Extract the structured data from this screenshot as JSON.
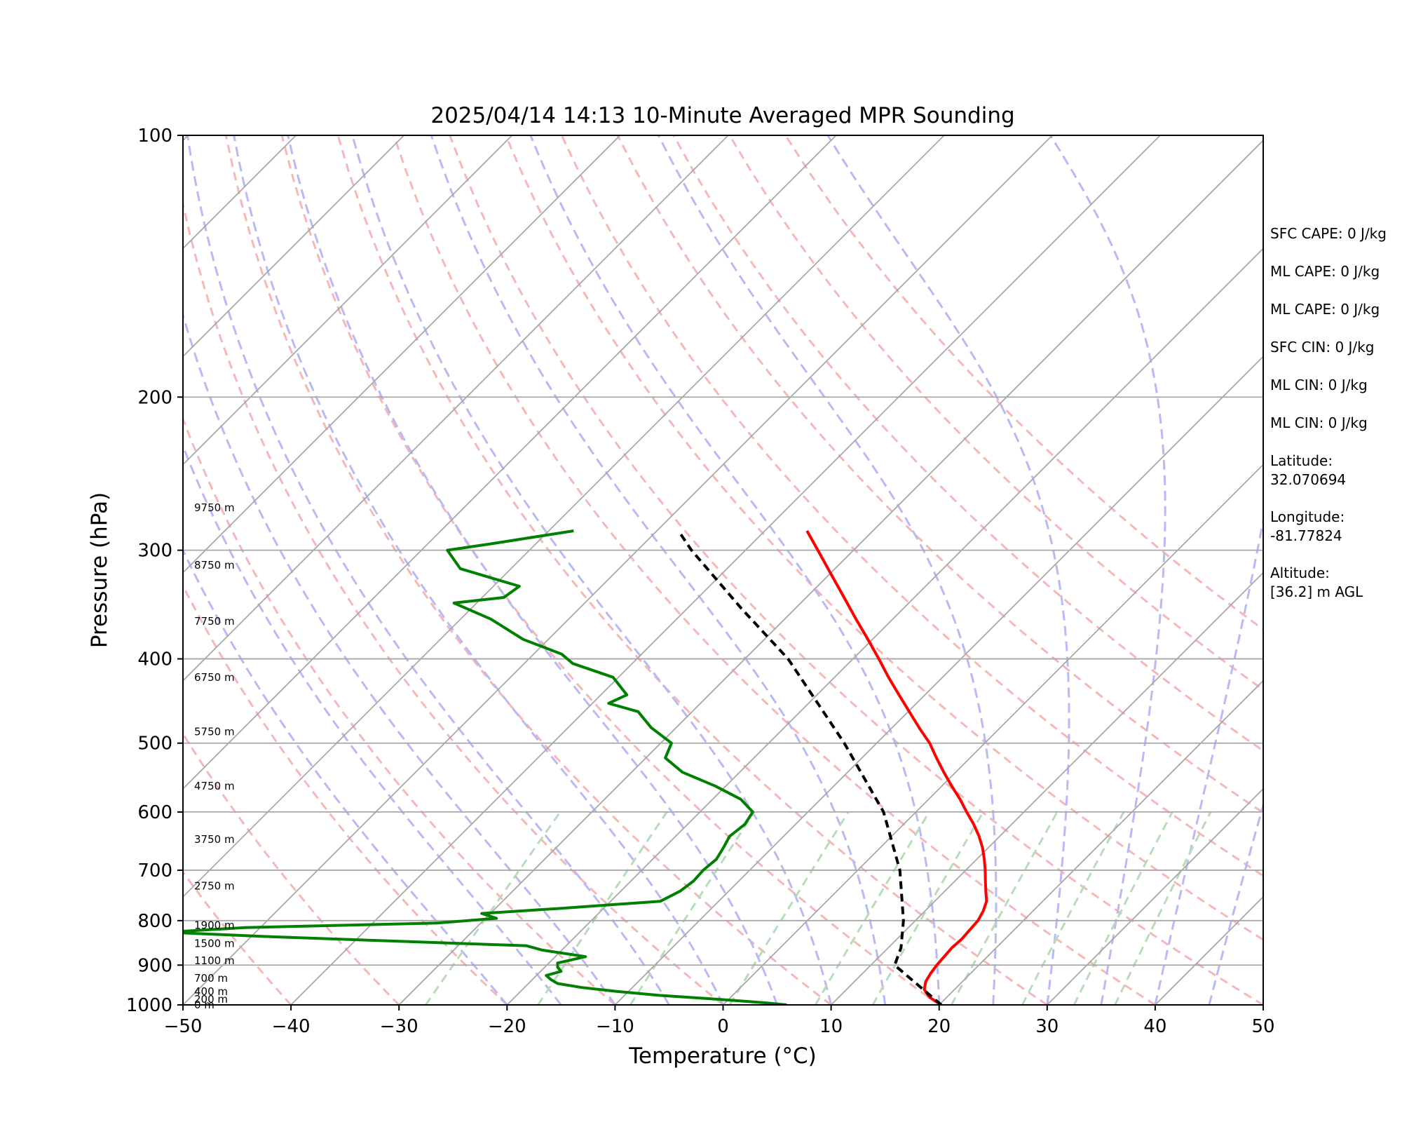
{
  "chart_data": {
    "type": "line",
    "title": "2025/04/14 14:13 10-Minute Averaged MPR Sounding",
    "xlabel": "Temperature (°C)",
    "ylabel": "Pressure (hPa)",
    "xlim": [
      -50,
      50
    ],
    "ylim": [
      1000,
      100
    ],
    "yscale": "log",
    "skew": "skew-T log-P",
    "xticks": [
      -50,
      -40,
      -30,
      -20,
      -10,
      0,
      10,
      20,
      30,
      40,
      50
    ],
    "yticks": [
      1000,
      900,
      800,
      700,
      600,
      500,
      400,
      300,
      200,
      100
    ],
    "grid": true,
    "series": [
      {
        "role": "temperature",
        "color": "#ff0000",
        "points": [
          [
            1000,
            20.2
          ],
          [
            980,
            18.4
          ],
          [
            960,
            17.2
          ],
          [
            940,
            16.6
          ],
          [
            920,
            16.3
          ],
          [
            900,
            16.1
          ],
          [
            880,
            16.0
          ],
          [
            860,
            15.9
          ],
          [
            840,
            16.0
          ],
          [
            820,
            15.9
          ],
          [
            800,
            15.8
          ],
          [
            780,
            15.4
          ],
          [
            760,
            14.8
          ],
          [
            740,
            13.8
          ],
          [
            720,
            12.8
          ],
          [
            700,
            11.8
          ],
          [
            680,
            10.7
          ],
          [
            660,
            9.5
          ],
          [
            640,
            8.1
          ],
          [
            620,
            6.5
          ],
          [
            600,
            4.7
          ],
          [
            580,
            2.9
          ],
          [
            560,
            0.9
          ],
          [
            540,
            -1.1
          ],
          [
            520,
            -3.1
          ],
          [
            500,
            -5.1
          ],
          [
            480,
            -7.5
          ],
          [
            460,
            -9.9
          ],
          [
            440,
            -12.4
          ],
          [
            420,
            -15.0
          ],
          [
            400,
            -17.6
          ],
          [
            380,
            -20.4
          ],
          [
            360,
            -23.4
          ],
          [
            340,
            -26.5
          ],
          [
            320,
            -29.8
          ],
          [
            300,
            -33.3
          ],
          [
            285,
            -36.1
          ]
        ]
      },
      {
        "role": "dewpoint",
        "color": "#008000",
        "points": [
          [
            1000,
            5.9
          ],
          [
            995,
            3.9
          ],
          [
            990,
            1.5
          ],
          [
            985,
            -1.1
          ],
          [
            975,
            -6.8
          ],
          [
            965,
            -11.1
          ],
          [
            955,
            -14.7
          ],
          [
            945,
            -17.3
          ],
          [
            935,
            -18.3
          ],
          [
            925,
            -19.1
          ],
          [
            915,
            -18.1
          ],
          [
            905,
            -18.8
          ],
          [
            895,
            -19.2
          ],
          [
            880,
            -17.2
          ],
          [
            865,
            -21.8
          ],
          [
            855,
            -23.7
          ],
          [
            845,
            -35.9
          ],
          [
            835,
            -48.0
          ],
          [
            825,
            -58.2
          ],
          [
            815,
            -51.4
          ],
          [
            805,
            -34.0
          ],
          [
            795,
            -29.0
          ],
          [
            785,
            -30.8
          ],
          [
            775,
            -24.3
          ],
          [
            760,
            -15.4
          ],
          [
            740,
            -14.5
          ],
          [
            720,
            -14.2
          ],
          [
            700,
            -14.3
          ],
          [
            680,
            -14.1
          ],
          [
            660,
            -14.5
          ],
          [
            640,
            -15.0
          ],
          [
            620,
            -14.7
          ],
          [
            600,
            -15.1
          ],
          [
            580,
            -17.4
          ],
          [
            560,
            -21.0
          ],
          [
            540,
            -25.3
          ],
          [
            520,
            -28.2
          ],
          [
            500,
            -29.0
          ],
          [
            480,
            -32.3
          ],
          [
            460,
            -35.0
          ],
          [
            450,
            -38.5
          ],
          [
            440,
            -37.6
          ],
          [
            420,
            -40.5
          ],
          [
            405,
            -45.5
          ],
          [
            395,
            -47.4
          ],
          [
            380,
            -52.3
          ],
          [
            360,
            -57.2
          ],
          [
            345,
            -62.1
          ],
          [
            340,
            -58.0
          ],
          [
            330,
            -57.6
          ],
          [
            315,
            -64.7
          ],
          [
            300,
            -67.6
          ],
          [
            295,
            -64.2
          ],
          [
            285,
            -57.7
          ]
        ]
      },
      {
        "role": "parcel",
        "color": "#000000",
        "style": "dashed",
        "points": [
          [
            1000,
            20.2
          ],
          [
            900,
            12.2
          ],
          [
            860,
            11.2
          ],
          [
            800,
            8.9
          ],
          [
            700,
            3.9
          ],
          [
            600,
            -3.0
          ],
          [
            500,
            -13.0
          ],
          [
            400,
            -26.0
          ],
          [
            350,
            -35.0
          ],
          [
            300,
            -45.0
          ],
          [
            285,
            -48.0
          ]
        ]
      }
    ],
    "background_lines": {
      "isotherms_C": [
        -160,
        -150,
        -140,
        -130,
        -120,
        -110,
        -100,
        -90,
        -80,
        -70,
        -60,
        -50,
        -40,
        -30,
        -20,
        -10,
        0,
        10,
        20,
        30,
        40,
        50
      ],
      "dry_adiabats_surface_C": [
        -70,
        -60,
        -50,
        -40,
        -30,
        -20,
        -10,
        0,
        10,
        20,
        30,
        40,
        50,
        60,
        70,
        80,
        90,
        100,
        110
      ],
      "moist_adiabats_surface_C": [
        -20,
        -15,
        -10,
        -5,
        0,
        5,
        10,
        15,
        20,
        25,
        30,
        35,
        40,
        45,
        50
      ],
      "mixing_ratio_lines_gkg": [
        0.4,
        1,
        2,
        4,
        7,
        10,
        16,
        24,
        32,
        40
      ]
    },
    "height_labels": [
      {
        "text": "0 m",
        "pressure": 1000
      },
      {
        "text": "200 m",
        "pressure": 985
      },
      {
        "text": "400 m",
        "pressure": 965
      },
      {
        "text": "700 m",
        "pressure": 932
      },
      {
        "text": "1100 m",
        "pressure": 890
      },
      {
        "text": "1500 m",
        "pressure": 850
      },
      {
        "text": "1900 m",
        "pressure": 810
      },
      {
        "text": "2750 m",
        "pressure": 730
      },
      {
        "text": "3750 m",
        "pressure": 645
      },
      {
        "text": "4750 m",
        "pressure": 560
      },
      {
        "text": "5750 m",
        "pressure": 485
      },
      {
        "text": "6750 m",
        "pressure": 420
      },
      {
        "text": "7750 m",
        "pressure": 362
      },
      {
        "text": "8750 m",
        "pressure": 312
      },
      {
        "text": "9750 m",
        "pressure": 268
      }
    ]
  },
  "info_panel": [
    [
      "SFC CAPE: 0 J/kg"
    ],
    [
      "ML CAPE: 0 J/kg"
    ],
    [
      "ML CAPE: 0 J/kg"
    ],
    [
      "SFC CIN: 0 J/kg"
    ],
    [
      "ML CIN: 0 J/kg"
    ],
    [
      "ML CIN: 0 J/kg"
    ],
    [
      "Latitude:",
      "32.070694"
    ],
    [
      "Longitude:",
      "-81.77824"
    ],
    [
      "Altitude:",
      "[36.2] m AGL"
    ]
  ],
  "colors": {
    "isotherm": "#a8a8a8",
    "isobar": "#a8a8a8",
    "dry_adiabat": "#f6b7b7",
    "moist_adiabat": "#b9b9f5",
    "mixing_ratio": "#b8dcb8"
  }
}
